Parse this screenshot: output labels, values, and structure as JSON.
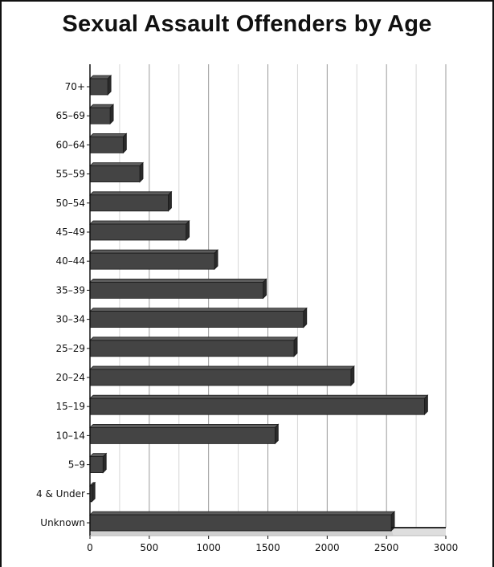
{
  "chart_data": {
    "type": "bar",
    "orientation": "horizontal",
    "title": "Sexual Assault Offenders by Age",
    "xlabel": "",
    "ylabel": "",
    "categories": [
      "70+",
      "65–69",
      "60–64",
      "55–59",
      "50–54",
      "45–49",
      "40–44",
      "35–39",
      "30–34",
      "25–29",
      "20–24",
      "15–19",
      "10–14",
      "5–9",
      "4 & Under",
      "Unknown"
    ],
    "values": [
      150,
      170,
      280,
      420,
      660,
      810,
      1050,
      1460,
      1800,
      1720,
      2200,
      2820,
      1560,
      110,
      15,
      2540
    ],
    "xlim": [
      0,
      3000
    ],
    "xticks": [
      0,
      500,
      1000,
      1500,
      2000,
      2500,
      3000
    ],
    "grid": "vertical",
    "legend": "none",
    "colors": {
      "bar_front": "#444444",
      "bar_top": "#5c5c5c",
      "bar_side": "#2a2a2a",
      "bar_edge": "#1a1a1a",
      "grid_major": "#9a9a9a",
      "grid_minor": "#d6d6d6",
      "floor": "#cfcfcf",
      "axis": "#111111"
    }
  }
}
